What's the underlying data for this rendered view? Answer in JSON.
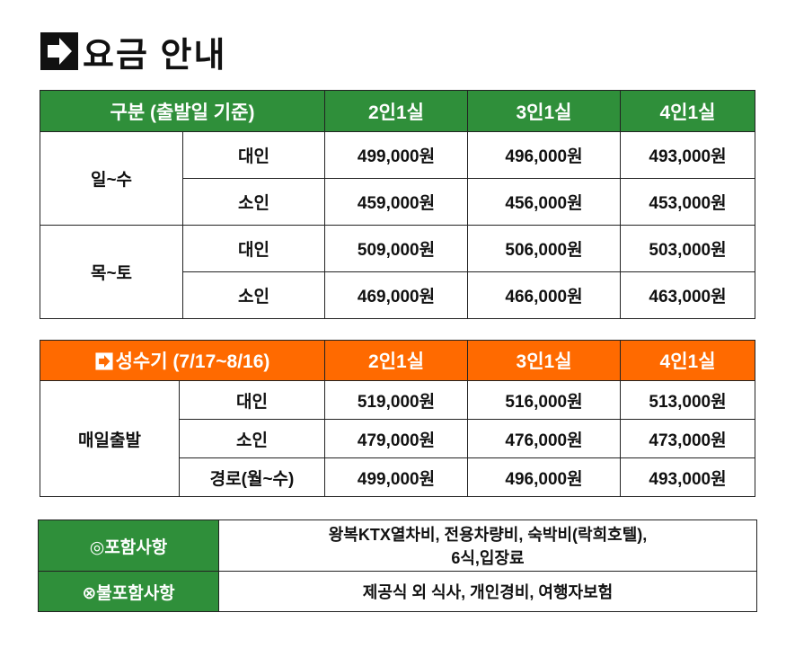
{
  "title": "요금 안내",
  "table1": {
    "header": [
      "구분 (출발일 기준)",
      "2인1실",
      "3인1실",
      "4인1실"
    ],
    "groups": [
      {
        "name": "일~수",
        "rows": [
          {
            "label": "대인",
            "prices": [
              "499,000원",
              "496,000원",
              "493,000원"
            ]
          },
          {
            "label": "소인",
            "prices": [
              "459,000원",
              "456,000원",
              "453,000원"
            ]
          }
        ]
      },
      {
        "name": "목~토",
        "rows": [
          {
            "label": "대인",
            "prices": [
              "509,000원",
              "506,000원",
              "503,000원"
            ]
          },
          {
            "label": "소인",
            "prices": [
              "469,000원",
              "466,000원",
              "463,000원"
            ]
          }
        ]
      }
    ]
  },
  "table2": {
    "header": [
      "성수기 (7/17~8/16)",
      "2인1실",
      "3인1실",
      "4인1실"
    ],
    "groups": [
      {
        "name": "매일출발",
        "rows": [
          {
            "label": "대인",
            "prices": [
              "519,000원",
              "516,000원",
              "513,000원"
            ]
          },
          {
            "label": "소인",
            "prices": [
              "479,000원",
              "476,000원",
              "473,000원"
            ]
          },
          {
            "label": "경로(월~수)",
            "prices": [
              "499,000원",
              "496,000원",
              "493,000원"
            ]
          }
        ]
      }
    ]
  },
  "table3": {
    "rows": [
      {
        "label": "◎포함사항",
        "lines": [
          "왕복KTX열차비, 전용차량비, 숙박비(락희호텔),",
          "6식,입장료"
        ]
      },
      {
        "label": "⊗불포함사항",
        "lines": [
          "제공식 외 식사, 개인경비, 여행자보험"
        ]
      }
    ]
  }
}
